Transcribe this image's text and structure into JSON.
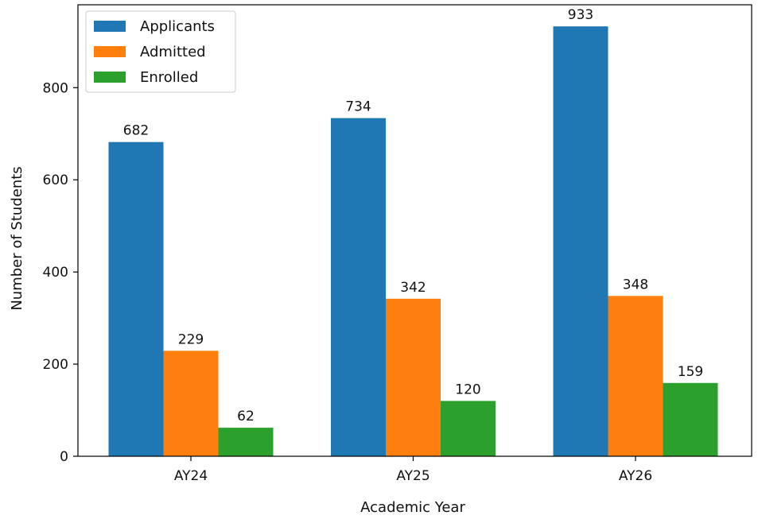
{
  "chart_data": {
    "type": "bar",
    "title": "",
    "xlabel": "Academic Year",
    "ylabel": "Number of Students",
    "categories": [
      "AY24",
      "AY25",
      "AY26"
    ],
    "series": [
      {
        "name": "Applicants",
        "color": "#1f77b4",
        "values": [
          682,
          734,
          933
        ]
      },
      {
        "name": "Admitted",
        "color": "#ff7f0e",
        "values": [
          229,
          342,
          348
        ]
      },
      {
        "name": "Enrolled",
        "color": "#2ca02c",
        "values": [
          62,
          120,
          159
        ]
      }
    ],
    "ylim": [
      0,
      980
    ],
    "yticks": [
      0,
      200,
      400,
      600,
      800
    ],
    "grid": false,
    "legend": "top-left",
    "data_labels": true
  }
}
